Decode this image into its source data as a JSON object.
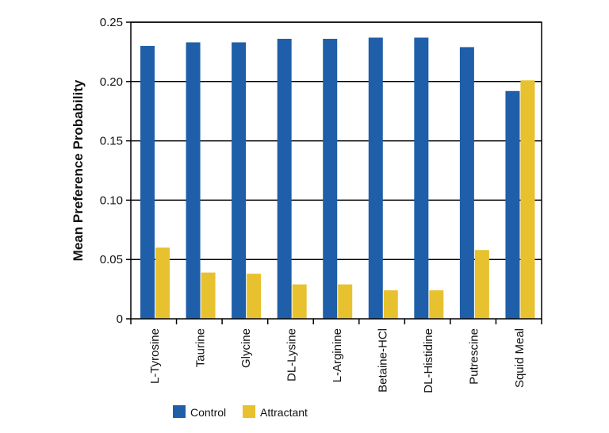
{
  "chart_data": {
    "type": "bar",
    "ylabel": "Mean Preference Probability",
    "xlabel": "",
    "ylim": [
      0,
      0.25
    ],
    "yticks": [
      0,
      0.05,
      0.1,
      0.15,
      0.2,
      0.25
    ],
    "ytick_labels": [
      "0",
      "0.05",
      "0.10",
      "0.15",
      "0.20",
      "0.25"
    ],
    "grid": true,
    "legend_position": "bottom",
    "categories": [
      "L-Tyrosine",
      "Taurine",
      "Glycine",
      "DL-Lysine",
      "L-Arginine",
      "Betaine-HCl",
      "DL-Histidine",
      "Putrescine",
      "Squid Meal"
    ],
    "series": [
      {
        "name": "Control",
        "color": "#1f5ea8",
        "values": [
          0.23,
          0.233,
          0.233,
          0.236,
          0.236,
          0.237,
          0.237,
          0.229,
          0.192
        ]
      },
      {
        "name": "Attractant",
        "color": "#e8c12e",
        "values": [
          0.06,
          0.039,
          0.038,
          0.029,
          0.029,
          0.024,
          0.024,
          0.058,
          0.201
        ]
      }
    ]
  }
}
